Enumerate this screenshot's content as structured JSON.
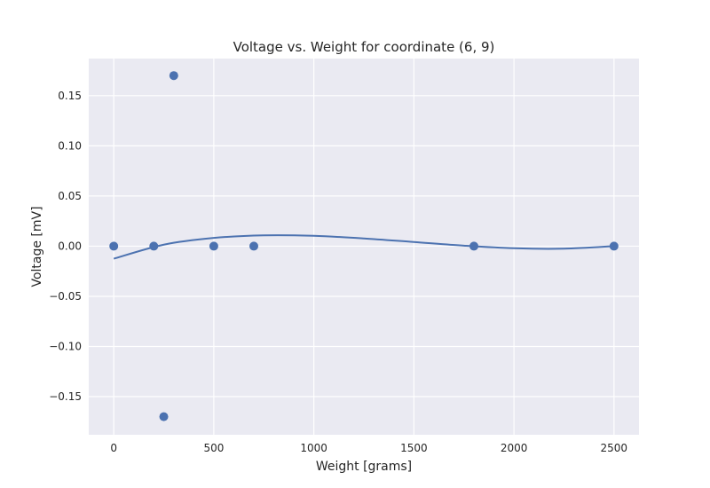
{
  "chart_data": {
    "type": "scatter",
    "title": "Voltage vs. Weight for coordinate (6, 9)",
    "xlabel": "Weight [grams]",
    "ylabel": "Voltage [mV]",
    "xlim": [
      -125,
      2625
    ],
    "ylim": [
      -0.188,
      0.187
    ],
    "xticks": [
      0,
      500,
      1000,
      1500,
      2000,
      2500
    ],
    "xtick_labels": [
      "0",
      "500",
      "1000",
      "1500",
      "2000",
      "2500"
    ],
    "yticks": [
      -0.15,
      -0.1,
      -0.05,
      0.0,
      0.05,
      0.1,
      0.15
    ],
    "ytick_labels": [
      "−0.15",
      "−0.10",
      "−0.05",
      "0.00",
      "0.05",
      "0.10",
      "0.15"
    ],
    "grid": true,
    "colors": {
      "background": "#eaeaf2",
      "grid": "#ffffff",
      "series": "#4c72b0"
    },
    "series": [
      {
        "kind": "scatter",
        "x": [
          0,
          200,
          250,
          300,
          500,
          700,
          1800,
          2500
        ],
        "y": [
          0.0,
          0.0,
          -0.17,
          0.17,
          0.0,
          0.0,
          0.0,
          0.0
        ]
      },
      {
        "kind": "line",
        "x": [
          0,
          250,
          500,
          750,
          1000,
          1250,
          1500,
          1750,
          2000,
          2250,
          2500
        ],
        "y": [
          -0.0125,
          0.0015,
          0.0082,
          0.0108,
          0.0103,
          0.0077,
          0.0041,
          0.0005,
          -0.0021,
          -0.0025,
          0.0
        ]
      }
    ]
  }
}
